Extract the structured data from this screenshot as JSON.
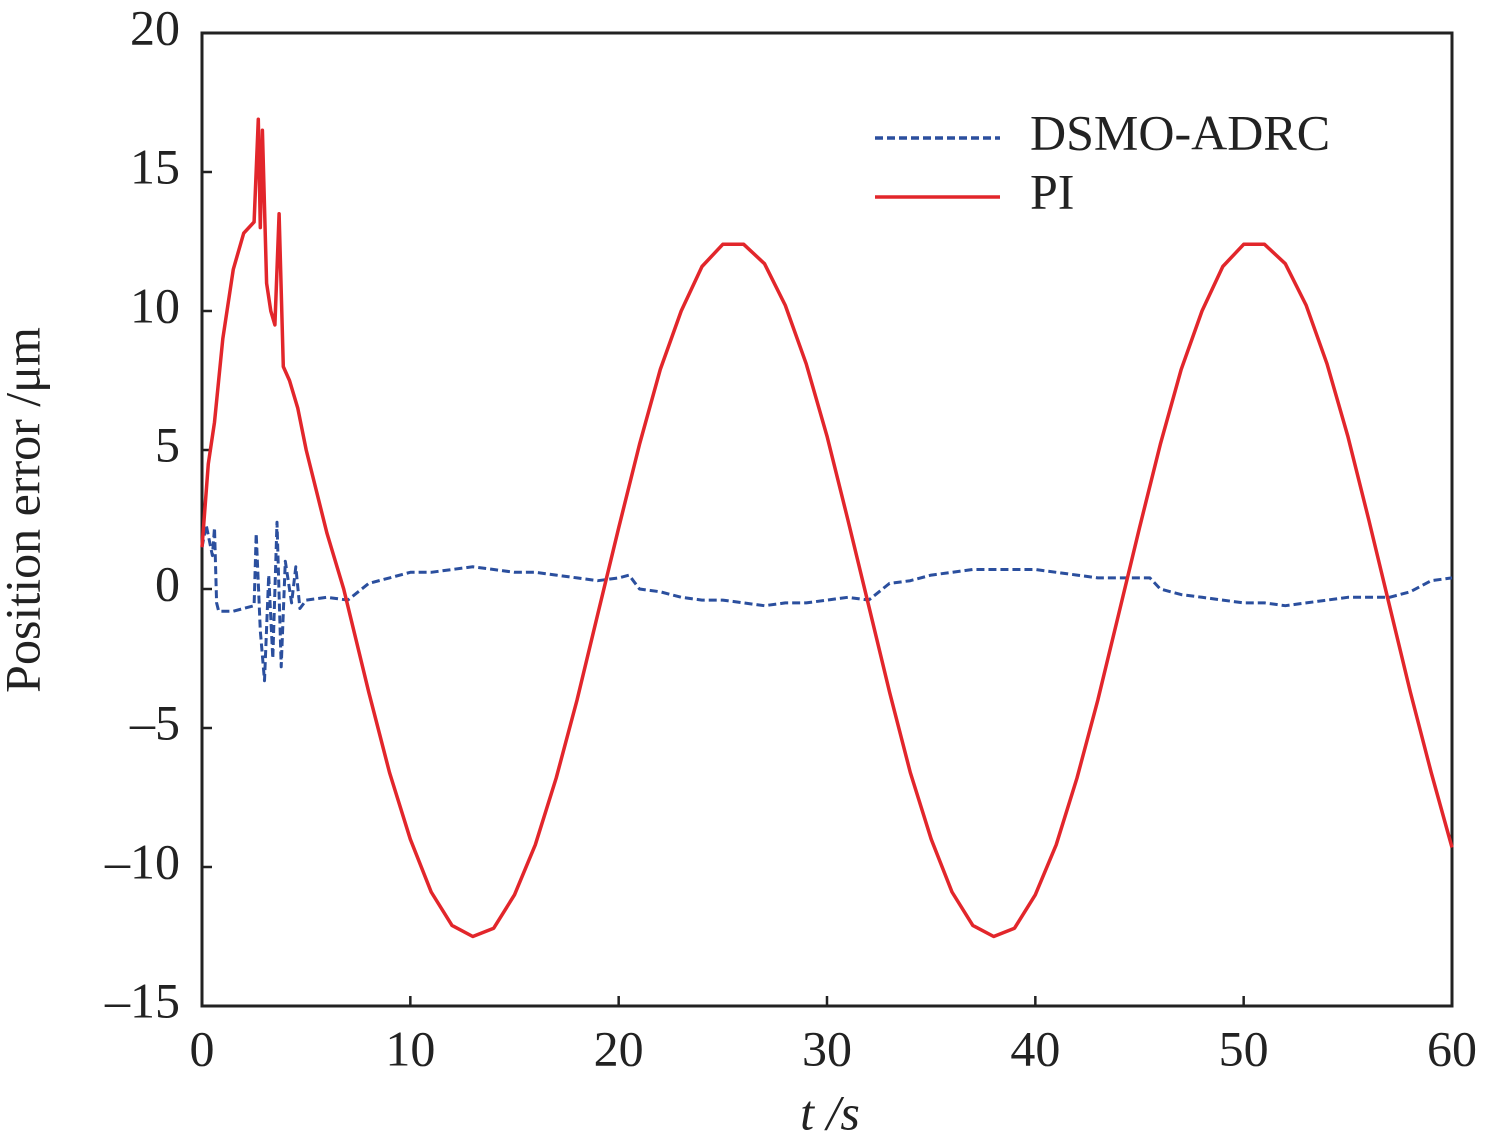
{
  "chart_data": {
    "type": "line",
    "xlabel": "t /s",
    "ylabel": "Position error /μm",
    "xlim": [
      0,
      60
    ],
    "xticks": [
      0,
      10,
      20,
      30,
      40,
      50,
      60
    ],
    "ylim": [
      -15,
      20
    ],
    "yticks": [
      {
        "value": -15,
        "label": "–15"
      },
      {
        "value": -10,
        "label": "–10"
      },
      {
        "value": -5,
        "label": "–5"
      },
      0,
      5,
      10,
      15,
      20
    ],
    "legend": "upper right",
    "series": [
      {
        "name": "DSMO-ADRC",
        "color": "#2b4f9e",
        "dash": true,
        "x": [
          0,
          0.2,
          0.5,
          0.6,
          0.7,
          0.8,
          1.5,
          2.5,
          2.6,
          2.8,
          3,
          3.2,
          3.4,
          3.6,
          3.8,
          4,
          4.3,
          4.5,
          4.7,
          5,
          6,
          7,
          8,
          9,
          10,
          11,
          12,
          13,
          14,
          15,
          16,
          17,
          18,
          19,
          20,
          20.5,
          21,
          22,
          23,
          24,
          25,
          26,
          27,
          28,
          29,
          30,
          31,
          32,
          33,
          34,
          35,
          36,
          37,
          38,
          39,
          40,
          41,
          42,
          43,
          44,
          45,
          45.5,
          46,
          47,
          48,
          49,
          50,
          51,
          52,
          53,
          54,
          55,
          56,
          57,
          58,
          59,
          60
        ],
        "values": [
          1.5,
          2.3,
          1.2,
          2.2,
          -0.5,
          -0.8,
          -0.8,
          -0.6,
          2.0,
          -1.5,
          -3.3,
          0.5,
          -2.5,
          2.4,
          -2.8,
          1.0,
          -0.5,
          0.8,
          -0.7,
          -0.4,
          -0.3,
          -0.4,
          0.2,
          0.4,
          0.6,
          0.6,
          0.7,
          0.8,
          0.7,
          0.6,
          0.6,
          0.5,
          0.4,
          0.3,
          0.4,
          0.5,
          0.0,
          -0.1,
          -0.3,
          -0.4,
          -0.4,
          -0.5,
          -0.6,
          -0.5,
          -0.5,
          -0.4,
          -0.3,
          -0.4,
          0.2,
          0.3,
          0.5,
          0.6,
          0.7,
          0.7,
          0.7,
          0.7,
          0.6,
          0.5,
          0.4,
          0.4,
          0.4,
          0.4,
          0.0,
          -0.2,
          -0.3,
          -0.4,
          -0.5,
          -0.5,
          -0.6,
          -0.5,
          -0.4,
          -0.3,
          -0.3,
          -0.3,
          -0.1,
          0.3,
          0.4
        ]
      },
      {
        "name": "PI",
        "color": "#e2262b",
        "dash": false,
        "x": [
          0,
          0.3,
          0.6,
          1,
          1.5,
          2,
          2.5,
          2.7,
          2.8,
          2.9,
          3.1,
          3.3,
          3.5,
          3.7,
          3.9,
          4.2,
          4.6,
          5,
          5.5,
          6,
          6.8,
          8,
          9,
          10,
          11,
          12,
          13,
          14,
          15,
          16,
          17,
          18,
          19,
          20,
          21,
          22,
          23,
          24,
          25,
          26,
          27,
          28,
          29,
          30,
          31,
          32,
          33,
          34,
          35,
          36,
          37,
          38,
          39,
          40,
          41,
          42,
          43,
          44,
          45,
          46,
          47,
          48,
          49,
          50,
          51,
          52,
          53,
          54,
          55,
          56,
          57,
          58,
          59,
          60
        ],
        "values": [
          1.5,
          4.5,
          6,
          9,
          11.5,
          12.8,
          13.2,
          16.9,
          13,
          16.5,
          11,
          10,
          9.5,
          13.5,
          8,
          7.5,
          6.5,
          5,
          3.5,
          2,
          0,
          -3.7,
          -6.6,
          -9.0,
          -10.9,
          -12.1,
          -12.5,
          -12.2,
          -11.0,
          -9.2,
          -6.8,
          -4.0,
          -0.9,
          2.2,
          5.2,
          7.9,
          10.0,
          11.6,
          12.4,
          12.4,
          11.7,
          10.2,
          8.1,
          5.5,
          2.5,
          -0.6,
          -3.7,
          -6.6,
          -9.0,
          -10.9,
          -12.1,
          -12.5,
          -12.2,
          -11.0,
          -9.2,
          -6.8,
          -4.0,
          -0.9,
          2.2,
          5.2,
          7.9,
          10.0,
          11.6,
          12.4,
          12.4,
          11.7,
          10.2,
          8.1,
          5.5,
          2.5,
          -0.6,
          -3.7,
          -6.6,
          -9.3
        ]
      }
    ]
  }
}
